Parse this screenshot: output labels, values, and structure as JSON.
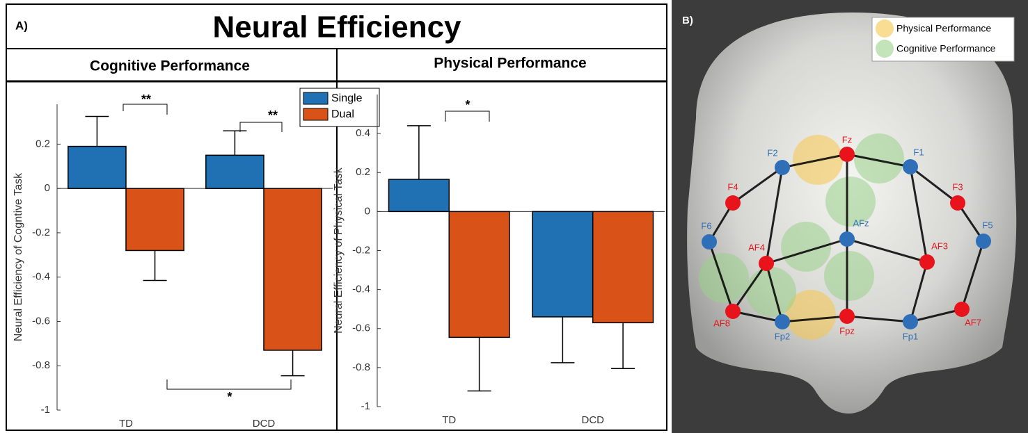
{
  "panel_a": {
    "label": "A)",
    "title": "Neural Efficiency"
  },
  "chart_data": [
    {
      "type": "bar",
      "title": "Cognitive Performance",
      "ylabel": "Neural Efficiency of Cogntive Task",
      "categories": [
        "TD",
        "DCD"
      ],
      "series": [
        {
          "name": "Single",
          "color": "#2070b4",
          "values": [
            0.19,
            0.15
          ],
          "errors": [
            0.135,
            0.11
          ]
        },
        {
          "name": "Dual",
          "color": "#d95319",
          "values": [
            -0.28,
            -0.73
          ],
          "errors": [
            0.135,
            0.115
          ]
        }
      ],
      "ylim": [
        -1,
        0.38
      ],
      "yticks": [
        -1,
        -0.8,
        -0.6,
        -0.4,
        -0.2,
        0,
        0.2
      ],
      "annotations": [
        "**",
        "**",
        "*"
      ]
    },
    {
      "type": "bar",
      "title": "Physical Performance",
      "ylabel": "Neural Efficiency of Physical Task",
      "categories": [
        "TD",
        "DCD"
      ],
      "series": [
        {
          "color": "#2070b4",
          "values": [
            0.165,
            -0.54
          ],
          "errors": [
            0.275,
            0.235
          ]
        },
        {
          "color": "#d95319",
          "values": [
            -0.645,
            -0.57
          ],
          "errors": [
            0.275,
            0.235
          ]
        }
      ],
      "ylim": [
        -1,
        0.6
      ],
      "yticks": [
        -1,
        -0.8,
        -0.6,
        -0.4,
        -0.2,
        0,
        0.2,
        0.4
      ],
      "annotations": [
        "*"
      ]
    }
  ],
  "panel_b": {
    "label": "B)",
    "legend": [
      "Physical Performance",
      "Cognitive Performance"
    ],
    "nodes": [
      {
        "label": "Fz",
        "color": "#e8131b"
      },
      {
        "label": "F2",
        "color": "#2e6fb8"
      },
      {
        "label": "F1",
        "color": "#2e6fb8"
      },
      {
        "label": "F4",
        "color": "#e8131b"
      },
      {
        "label": "F3",
        "color": "#e8131b"
      },
      {
        "label": "F6",
        "color": "#2e6fb8"
      },
      {
        "label": "F5",
        "color": "#2e6fb8"
      },
      {
        "label": "AFz",
        "color": "#2e6fb8"
      },
      {
        "label": "AF4",
        "color": "#e8131b"
      },
      {
        "label": "AF3",
        "color": "#e8131b"
      },
      {
        "label": "AF8",
        "color": "#e8131b"
      },
      {
        "label": "AF7",
        "color": "#e8131b"
      },
      {
        "label": "Fp2",
        "color": "#2e6fb8"
      },
      {
        "label": "Fpz",
        "color": "#e8131b"
      },
      {
        "label": "Fp1",
        "color": "#2e6fb8"
      }
    ]
  }
}
